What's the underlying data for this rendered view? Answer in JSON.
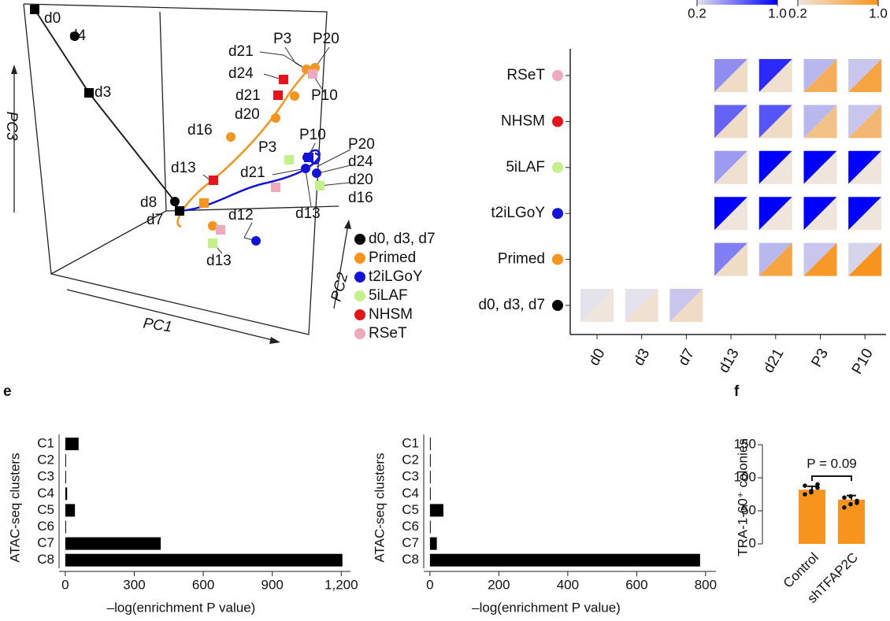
{
  "chart_data": [
    {
      "type": "pca3d",
      "x_label": "PC1",
      "y_label": "PC2",
      "z_label": "PC3",
      "annotations": [
        "d0",
        "d4",
        "d3",
        "d21",
        "P3",
        "P20",
        "d24",
        "d21",
        "P10",
        "d20",
        "d16",
        "P10",
        "P3",
        "P20",
        "d24",
        "d21",
        "d20",
        "d13",
        "d16",
        "d13",
        "d8",
        "d7",
        "d12",
        "d13"
      ],
      "series": [
        {
          "name": "d0, d3, d7",
          "color": "#000000"
        },
        {
          "name": "Primed",
          "color": "#f7941d"
        },
        {
          "name": "t2iLGoY",
          "color": "#1414d8"
        },
        {
          "name": "5iLAF",
          "color": "#c4f08a"
        },
        {
          "name": "NHSM",
          "color": "#e5141b"
        },
        {
          "name": "RSeT",
          "color": "#eeaabb"
        }
      ]
    },
    {
      "type": "triangle-heatmap",
      "rows": [
        "RSeT",
        "NHSM",
        "5iLAF",
        "t2iLGoY",
        "Primed",
        "d0, d3, d7"
      ],
      "row_colors": [
        "#eeaabb",
        "#e5141b",
        "#c4f08a",
        "#1414d8",
        "#f7941d",
        "#000000"
      ],
      "columns": [
        "d0",
        "d3",
        "d7",
        "d13",
        "d21",
        "P3",
        "P10"
      ],
      "blue_values": [
        [
          null,
          null,
          null,
          0.5,
          0.85,
          0.35,
          0.3
        ],
        [
          null,
          null,
          null,
          0.65,
          0.7,
          0.35,
          0.3
        ],
        [
          null,
          null,
          null,
          0.45,
          1.0,
          1.0,
          1.0
        ],
        [
          null,
          null,
          null,
          1.0,
          1.0,
          1.0,
          1.0
        ],
        [
          null,
          null,
          null,
          0.55,
          0.35,
          0.3,
          0.25
        ],
        [
          0.2,
          0.2,
          0.3,
          null,
          null,
          null,
          null
        ]
      ],
      "orange_values": [
        [
          null,
          null,
          null,
          0.3,
          0.25,
          0.75,
          0.85
        ],
        [
          null,
          null,
          null,
          0.3,
          0.3,
          0.55,
          0.65
        ],
        [
          null,
          null,
          null,
          0.25,
          0.2,
          0.2,
          0.2
        ],
        [
          null,
          null,
          null,
          0.2,
          0.2,
          0.2,
          0.2
        ],
        [
          null,
          null,
          null,
          0.3,
          0.85,
          0.95,
          1.0
        ],
        [
          0.2,
          0.25,
          0.3,
          null,
          null,
          null,
          null
        ]
      ],
      "blue_scale": {
        "lim": [
          0.2,
          1.0
        ],
        "ticks": [
          0.2,
          {
            "value": 1,
            "label": "1.0"
          }
        ],
        "colors": [
          "#e4e2ea",
          "#0000ff"
        ]
      },
      "orange_scale": {
        "lim": [
          0.2,
          1.0
        ],
        "ticks": [
          0.2,
          {
            "value": 1,
            "label": "1.0"
          }
        ],
        "colors": [
          "#efe5dc",
          "#f7941d"
        ]
      }
    },
    {
      "type": "hbar",
      "panel_label": "e",
      "y_label": "ATAC-seq clusters",
      "x_label": "–log(enrichment P value)",
      "categories": [
        "C1",
        "C2",
        "C3",
        "C4",
        "C5",
        "C6",
        "C7",
        "C8"
      ],
      "values": [
        58,
        2,
        2,
        8,
        42,
        2,
        415,
        1205
      ],
      "color": "#000000",
      "xlim": [
        -27,
        1240
      ],
      "xticks": [
        0,
        300,
        600,
        900,
        {
          "value": 1200,
          "label": "1,200"
        }
      ]
    },
    {
      "type": "hbar",
      "y_label": "ATAC-seq clusters",
      "x_label": "–log(enrichment P value)",
      "categories": [
        "C1",
        "C2",
        "C3",
        "C4",
        "C5",
        "C6",
        "C7",
        "C8"
      ],
      "values": [
        1,
        1,
        1,
        1,
        39,
        1,
        20,
        784
      ],
      "color": "#000000",
      "xlim": [
        -18,
        830
      ],
      "xticks": [
        0,
        200,
        400,
        600,
        800
      ]
    },
    {
      "type": "bar",
      "panel_label": "f",
      "y_label": "TRA-1-60⁺ colonies",
      "annotation": "P = 0.09",
      "categories": [
        "Control",
        "shTFAP2C"
      ],
      "values": [
        82,
        67
      ],
      "errors": [
        5,
        6
      ],
      "color": "#f7941d",
      "points": [
        [
          75,
          80,
          85,
          88,
          78,
          90
        ],
        [
          55,
          60,
          65,
          70,
          72,
          62
        ]
      ],
      "ylim": [
        0,
        150
      ],
      "yticks": [
        0,
        50,
        100,
        150
      ]
    }
  ]
}
